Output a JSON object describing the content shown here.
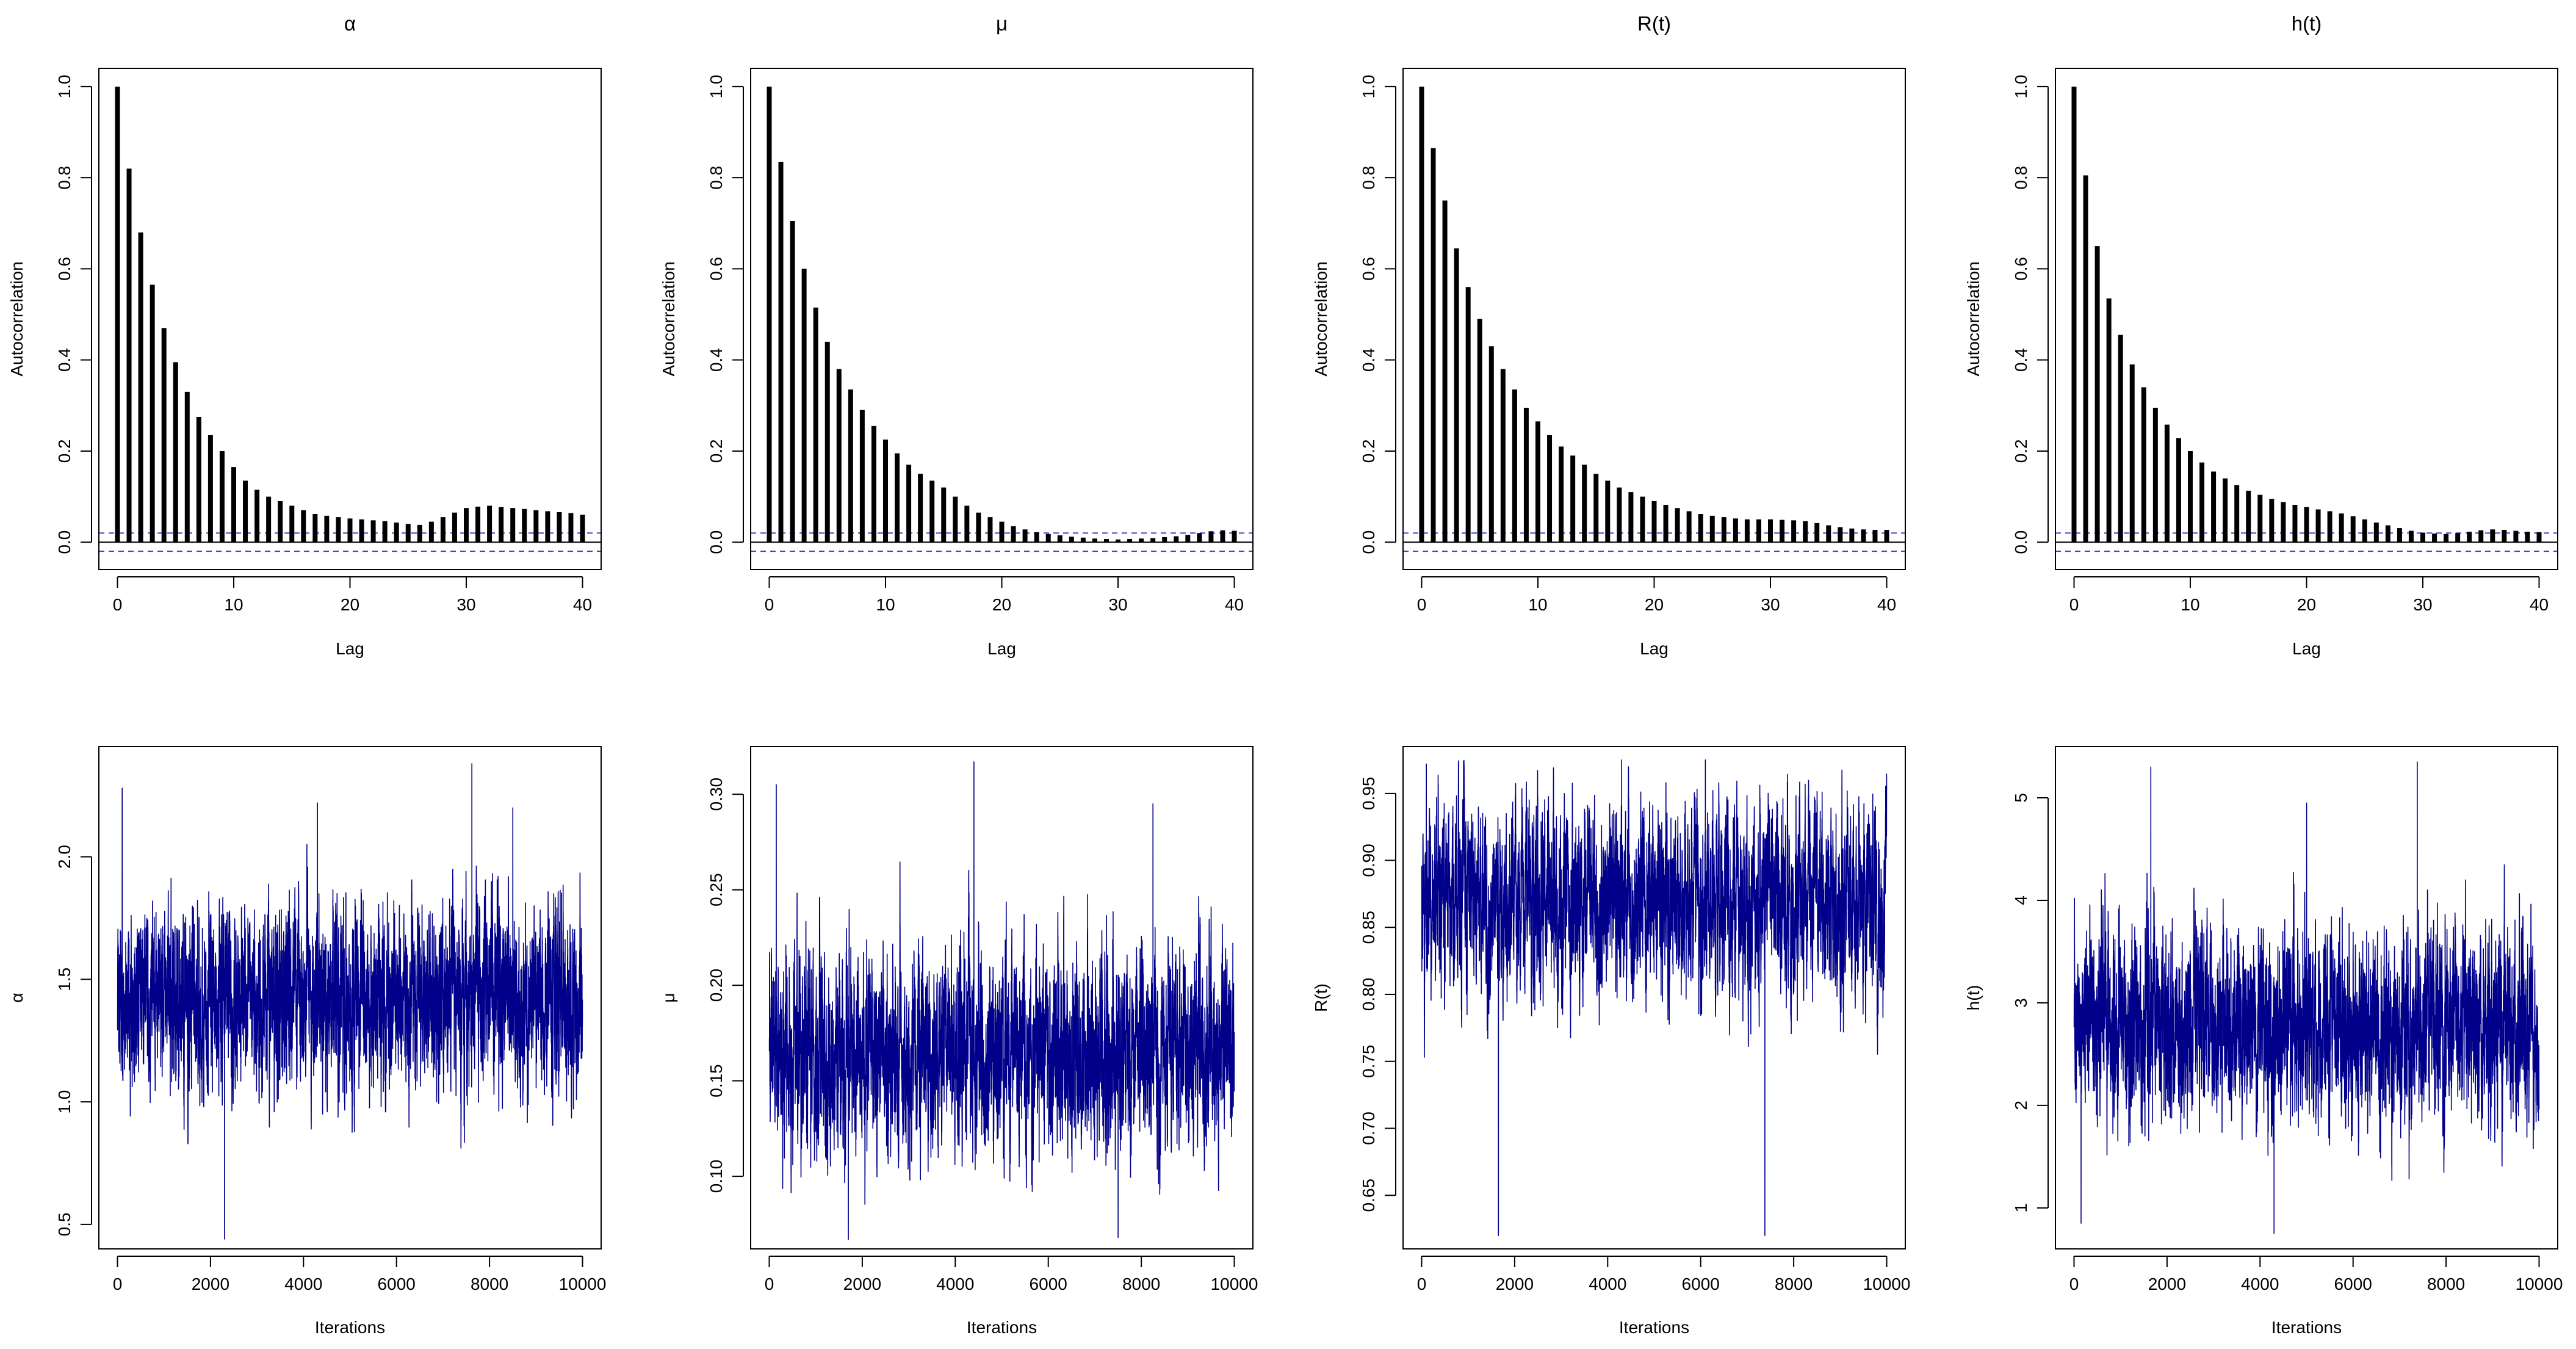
{
  "figure": {
    "acf_line_color": "#000000",
    "trace_color": "#00008B",
    "confidence_band_color": "#3F48CC"
  },
  "chart_data": [
    {
      "type": "bar",
      "kind": "acf",
      "title": "α",
      "xlabel": "Lag",
      "ylabel": "Autocorrelation",
      "xlim": [
        -1.6,
        41.6
      ],
      "ylim": [
        -0.06,
        1.04
      ],
      "xticks": [
        0,
        10,
        20,
        30,
        40
      ],
      "yticks": [
        0.0,
        0.2,
        0.4,
        0.6,
        0.8,
        1.0
      ],
      "ci": 0.02,
      "x": [
        0,
        1,
        2,
        3,
        4,
        5,
        6,
        7,
        8,
        9,
        10,
        11,
        12,
        13,
        14,
        15,
        16,
        17,
        18,
        19,
        20,
        21,
        22,
        23,
        24,
        25,
        26,
        27,
        28,
        29,
        30,
        31,
        32,
        33,
        34,
        35,
        36,
        37,
        38,
        39,
        40
      ],
      "values": [
        1.0,
        0.82,
        0.68,
        0.565,
        0.47,
        0.395,
        0.33,
        0.275,
        0.235,
        0.2,
        0.165,
        0.135,
        0.115,
        0.1,
        0.09,
        0.08,
        0.07,
        0.062,
        0.058,
        0.055,
        0.052,
        0.05,
        0.048,
        0.046,
        0.043,
        0.04,
        0.038,
        0.045,
        0.055,
        0.065,
        0.075,
        0.078,
        0.08,
        0.077,
        0.075,
        0.073,
        0.07,
        0.068,
        0.066,
        0.064,
        0.06
      ]
    },
    {
      "type": "bar",
      "kind": "acf",
      "title": "μ",
      "xlabel": "Lag",
      "ylabel": "Autocorrelation",
      "xlim": [
        -1.6,
        41.6
      ],
      "ylim": [
        -0.06,
        1.04
      ],
      "xticks": [
        0,
        10,
        20,
        30,
        40
      ],
      "yticks": [
        0.0,
        0.2,
        0.4,
        0.6,
        0.8,
        1.0
      ],
      "ci": 0.02,
      "x": [
        0,
        1,
        2,
        3,
        4,
        5,
        6,
        7,
        8,
        9,
        10,
        11,
        12,
        13,
        14,
        15,
        16,
        17,
        18,
        19,
        20,
        21,
        22,
        23,
        24,
        25,
        26,
        27,
        28,
        29,
        30,
        31,
        32,
        33,
        34,
        35,
        36,
        37,
        38,
        39,
        40
      ],
      "values": [
        1.0,
        0.835,
        0.705,
        0.6,
        0.515,
        0.44,
        0.38,
        0.335,
        0.29,
        0.255,
        0.225,
        0.195,
        0.17,
        0.15,
        0.135,
        0.12,
        0.1,
        0.08,
        0.065,
        0.055,
        0.045,
        0.035,
        0.028,
        0.022,
        0.018,
        0.015,
        0.012,
        0.01,
        0.008,
        0.007,
        0.006,
        0.007,
        0.008,
        0.009,
        0.011,
        0.013,
        0.016,
        0.02,
        0.024,
        0.026,
        0.025
      ]
    },
    {
      "type": "bar",
      "kind": "acf",
      "title": "R(t)",
      "xlabel": "Lag",
      "ylabel": "Autocorrelation",
      "xlim": [
        -1.6,
        41.6
      ],
      "ylim": [
        -0.06,
        1.04
      ],
      "xticks": [
        0,
        10,
        20,
        30,
        40
      ],
      "yticks": [
        0.0,
        0.2,
        0.4,
        0.6,
        0.8,
        1.0
      ],
      "ci": 0.02,
      "x": [
        0,
        1,
        2,
        3,
        4,
        5,
        6,
        7,
        8,
        9,
        10,
        11,
        12,
        13,
        14,
        15,
        16,
        17,
        18,
        19,
        20,
        21,
        22,
        23,
        24,
        25,
        26,
        27,
        28,
        29,
        30,
        31,
        32,
        33,
        34,
        35,
        36,
        37,
        38,
        39,
        40
      ],
      "values": [
        1.0,
        0.865,
        0.75,
        0.645,
        0.56,
        0.49,
        0.43,
        0.38,
        0.335,
        0.295,
        0.265,
        0.235,
        0.21,
        0.19,
        0.17,
        0.15,
        0.135,
        0.12,
        0.11,
        0.1,
        0.09,
        0.082,
        0.075,
        0.068,
        0.062,
        0.058,
        0.055,
        0.052,
        0.05,
        0.05,
        0.05,
        0.049,
        0.048,
        0.046,
        0.042,
        0.037,
        0.033,
        0.03,
        0.028,
        0.027,
        0.027
      ]
    },
    {
      "type": "bar",
      "kind": "acf",
      "title": "h(t)",
      "xlabel": "Lag",
      "ylabel": "Autocorrelation",
      "xlim": [
        -1.6,
        41.6
      ],
      "ylim": [
        -0.06,
        1.04
      ],
      "xticks": [
        0,
        10,
        20,
        30,
        40
      ],
      "yticks": [
        0.0,
        0.2,
        0.4,
        0.6,
        0.8,
        1.0
      ],
      "ci": 0.02,
      "x": [
        0,
        1,
        2,
        3,
        4,
        5,
        6,
        7,
        8,
        9,
        10,
        11,
        12,
        13,
        14,
        15,
        16,
        17,
        18,
        19,
        20,
        21,
        22,
        23,
        24,
        25,
        26,
        27,
        28,
        29,
        30,
        31,
        32,
        33,
        34,
        35,
        36,
        37,
        38,
        39,
        40
      ],
      "values": [
        1.0,
        0.805,
        0.65,
        0.535,
        0.455,
        0.39,
        0.34,
        0.295,
        0.258,
        0.228,
        0.2,
        0.175,
        0.155,
        0.14,
        0.125,
        0.113,
        0.104,
        0.095,
        0.088,
        0.082,
        0.077,
        0.072,
        0.068,
        0.063,
        0.057,
        0.05,
        0.043,
        0.037,
        0.031,
        0.025,
        0.021,
        0.019,
        0.018,
        0.02,
        0.023,
        0.026,
        0.028,
        0.027,
        0.025,
        0.023,
        0.022
      ]
    },
    {
      "type": "line",
      "kind": "trace",
      "title": "",
      "xlabel": "Iterations",
      "ylabel": "α",
      "n_iterations": 10000,
      "xlim": [
        -400,
        10400
      ],
      "ylim": [
        0.4,
        2.45
      ],
      "xticks": [
        0,
        2000,
        4000,
        6000,
        8000,
        10000
      ],
      "yticks": [
        0.5,
        1.0,
        1.5,
        2.0
      ],
      "mean": 1.42,
      "sd": 0.17,
      "ar": 0.82,
      "observed_min": 0.44,
      "observed_max": 2.38,
      "extremes": [
        {
          "x": 7620,
          "y": 2.38
        },
        {
          "x": 2300,
          "y": 0.44
        },
        {
          "x": 100,
          "y": 2.28
        },
        {
          "x": 4300,
          "y": 2.22
        },
        {
          "x": 8500,
          "y": 2.2
        }
      ]
    },
    {
      "type": "line",
      "kind": "trace",
      "title": "",
      "xlabel": "Iterations",
      "ylabel": "μ",
      "n_iterations": 10000,
      "xlim": [
        -400,
        10400
      ],
      "ylim": [
        0.062,
        0.325
      ],
      "xticks": [
        0,
        2000,
        4000,
        6000,
        8000,
        10000
      ],
      "yticks": [
        0.1,
        0.15,
        0.2,
        0.25,
        0.3
      ],
      "mean": 0.165,
      "sd": 0.024,
      "ar": 0.84,
      "observed_min": 0.067,
      "observed_max": 0.317,
      "extremes": [
        {
          "x": 4400,
          "y": 0.317
        },
        {
          "x": 150,
          "y": 0.305
        },
        {
          "x": 1700,
          "y": 0.067
        },
        {
          "x": 8250,
          "y": 0.295
        },
        {
          "x": 7500,
          "y": 0.068
        }
      ]
    },
    {
      "type": "line",
      "kind": "trace",
      "title": "",
      "xlabel": "Iterations",
      "ylabel": "R(t)",
      "n_iterations": 10000,
      "xlim": [
        -400,
        10400
      ],
      "ylim": [
        0.61,
        0.985
      ],
      "xticks": [
        0,
        2000,
        4000,
        6000,
        8000,
        10000
      ],
      "yticks": [
        0.65,
        0.7,
        0.75,
        0.8,
        0.85,
        0.9,
        0.95
      ],
      "mean": 0.87,
      "sd": 0.033,
      "ar": 0.86,
      "observed_min": 0.62,
      "observed_max": 0.975,
      "extremes": [
        {
          "x": 1650,
          "y": 0.62
        },
        {
          "x": 7380,
          "y": 0.62
        },
        {
          "x": 4300,
          "y": 0.975
        },
        {
          "x": 100,
          "y": 0.972
        },
        {
          "x": 6100,
          "y": 0.975
        }
      ]
    },
    {
      "type": "line",
      "kind": "trace",
      "title": "",
      "xlabel": "Iterations",
      "ylabel": "h(t)",
      "n_iterations": 10000,
      "xlim": [
        -400,
        10400
      ],
      "ylim": [
        0.6,
        5.5
      ],
      "xticks": [
        0,
        2000,
        4000,
        6000,
        8000,
        10000
      ],
      "yticks": [
        1,
        2,
        3,
        4,
        5
      ],
      "mean": 2.75,
      "sd": 0.42,
      "ar": 0.82,
      "observed_min": 0.75,
      "observed_max": 5.35,
      "extremes": [
        {
          "x": 1650,
          "y": 5.3
        },
        {
          "x": 7380,
          "y": 5.35
        },
        {
          "x": 4300,
          "y": 0.75
        },
        {
          "x": 150,
          "y": 0.85
        },
        {
          "x": 5000,
          "y": 4.95
        }
      ]
    }
  ]
}
